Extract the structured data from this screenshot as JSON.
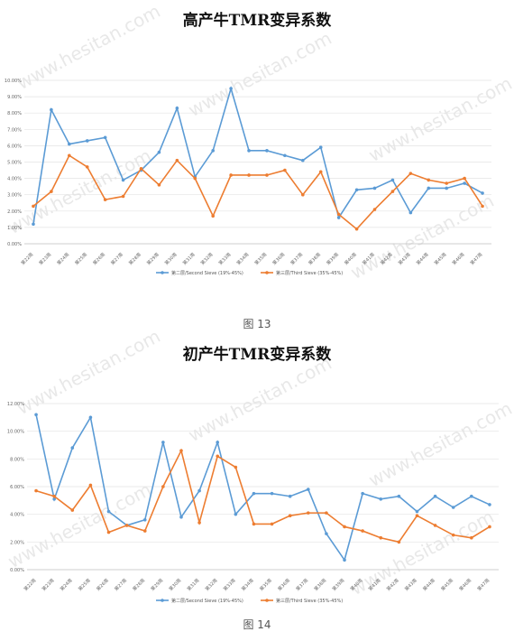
{
  "watermark": "www.hesitan.com",
  "charts": [
    {
      "caption": "图 13",
      "chart_data": {
        "type": "line",
        "title": "高产牛TMR变异系数",
        "xlabel": "",
        "ylabel": "",
        "ylim": [
          0,
          10
        ],
        "y_ticks": [
          "0.00%",
          "1.00%",
          "2.00%",
          "3.00%",
          "4.00%",
          "5.00%",
          "6.00%",
          "7.00%",
          "8.00%",
          "9.00%",
          "10.00%"
        ],
        "categories": [
          "第22周",
          "第23周",
          "第24周",
          "第25周",
          "第26周",
          "第27周",
          "第28周",
          "第29周",
          "第30周",
          "第31周",
          "第32周",
          "第33周",
          "第34周",
          "第35周",
          "第36周",
          "第37周",
          "第38周",
          "第39周",
          "第40周",
          "第41周",
          "第42周",
          "第43周",
          "第44周",
          "第45周",
          "第46周",
          "第47周"
        ],
        "series": [
          {
            "name": "第二层/Second Sieve (19%-45%)",
            "color": "#5b9bd5",
            "values": [
              1.2,
              8.2,
              6.1,
              6.3,
              6.5,
              3.9,
              4.5,
              5.6,
              8.3,
              4.1,
              5.7,
              9.5,
              5.7,
              5.7,
              5.4,
              5.1,
              5.9,
              1.6,
              3.3,
              3.4,
              3.9,
              1.9,
              3.4,
              3.4,
              3.7,
              3.1
            ]
          },
          {
            "name": "第三层/Third Sieve (35%-45%)",
            "color": "#ed7d31",
            "values": [
              2.3,
              3.2,
              5.4,
              4.7,
              2.7,
              2.9,
              4.6,
              3.6,
              5.1,
              4.0,
              1.7,
              4.2,
              4.2,
              4.2,
              4.5,
              3.0,
              4.4,
              1.8,
              0.9,
              2.1,
              3.2,
              4.3,
              3.9,
              3.7,
              4.0,
              2.3
            ]
          }
        ],
        "grid": true,
        "legend": "bottom-center"
      }
    },
    {
      "caption": "图 14",
      "chart_data": {
        "type": "line",
        "title": "初产牛TMR变异系数",
        "xlabel": "",
        "ylabel": "",
        "ylim": [
          0,
          12
        ],
        "y_ticks": [
          "0.00%",
          "2.00%",
          "4.00%",
          "6.00%",
          "8.00%",
          "10.00%",
          "12.00%"
        ],
        "categories": [
          "第22周",
          "第23周",
          "第24周",
          "第25周",
          "第26周",
          "第27周",
          "第28周",
          "第29周",
          "第30周",
          "第31周",
          "第32周",
          "第33周",
          "第34周",
          "第35周",
          "第36周",
          "第37周",
          "第38周",
          "第39周",
          "第40周",
          "第41周",
          "第42周",
          "第43周",
          "第44周",
          "第45周",
          "第46周",
          "第47周"
        ],
        "series": [
          {
            "name": "第二层/Second Sieve (19%-45%)",
            "color": "#5b9bd5",
            "values": [
              11.2,
              5.1,
              8.8,
              11.0,
              4.2,
              3.2,
              3.6,
              9.2,
              3.8,
              5.7,
              9.2,
              4.0,
              5.5,
              5.5,
              5.3,
              5.8,
              2.6,
              0.7,
              5.5,
              5.1,
              5.3,
              4.2,
              5.3,
              4.5,
              5.3,
              4.7
            ]
          },
          {
            "name": "第三层/Third Sieve (35%-45%)",
            "color": "#ed7d31",
            "values": [
              5.7,
              5.3,
              4.3,
              6.1,
              2.7,
              3.2,
              2.8,
              6.0,
              8.6,
              3.4,
              8.2,
              7.4,
              3.3,
              3.3,
              3.9,
              4.1,
              4.1,
              3.1,
              2.8,
              2.3,
              2.0,
              3.9,
              3.2,
              2.5,
              2.3,
              3.1
            ]
          }
        ],
        "grid": true,
        "legend": "bottom-center"
      }
    }
  ]
}
